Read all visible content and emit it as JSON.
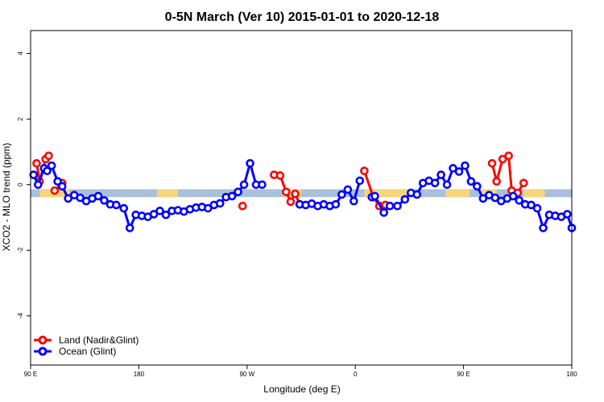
{
  "chart_data": {
    "type": "line",
    "title": "0-5N March (Ver 10)   2015-01-01 to 2020-12-18",
    "xlabel": "Longitude (deg E)",
    "ylabel": "XCO2 - MLO trend (ppm)",
    "xlim": [
      90,
      450
    ],
    "ylim": [
      -5.5,
      4.7
    ],
    "x_ticks": [
      {
        "value": 90,
        "label": "90 E"
      },
      {
        "value": 162,
        "label": "180"
      },
      {
        "value": 234,
        "label": "90 W"
      },
      {
        "value": 306,
        "label": "0"
      },
      {
        "value": 378,
        "label": "90 E"
      },
      {
        "value": 450,
        "label": "180"
      }
    ],
    "y_ticks": [
      {
        "value": 4,
        "label": "4"
      },
      {
        "value": 2,
        "label": "2"
      },
      {
        "value": 0,
        "label": "0"
      },
      {
        "value": -2,
        "label": "-2"
      },
      {
        "value": -4,
        "label": "-4"
      }
    ],
    "band": {
      "y_low": -0.38,
      "y_high": -0.14,
      "color": "#a9bfdb",
      "land_color": "#f6d67c"
    },
    "land_segments": [
      [
        96,
        116
      ],
      [
        174,
        188
      ],
      [
        258,
        270
      ],
      [
        312,
        344
      ],
      [
        366,
        382
      ],
      [
        389,
        400
      ],
      [
        418,
        432
      ]
    ],
    "legend": {
      "position": "bottom-left"
    },
    "series": [
      {
        "name": "Land (Nadir&Glint)",
        "color": "#ff0000",
        "segments": [
          {
            "x": [
              94,
              96,
              100,
              102
            ],
            "y": [
              0.65,
              0.1,
              0.78,
              0.88
            ]
          },
          {
            "x": [
              106,
              111
            ],
            "y": [
              -0.18,
              0.05
            ]
          },
          {
            "x": [
              231
            ],
            "y": [
              -0.65
            ]
          },
          {
            "x": [
              252,
              256,
              260,
              263,
              266,
              269
            ],
            "y": [
              0.3,
              0.28,
              -0.22,
              -0.52,
              -0.28,
              -0.6
            ]
          },
          {
            "x": [
              312,
              318,
              322
            ],
            "y": [
              0.42,
              -0.38,
              -0.65
            ]
          },
          {
            "x": [
              326
            ],
            "y": [
              -0.62
            ]
          },
          {
            "x": [
              397,
              400,
              404,
              408,
              410,
              414,
              418
            ],
            "y": [
              0.65,
              0.1,
              0.78,
              0.88,
              -0.18,
              -0.25,
              0.05
            ]
          }
        ]
      },
      {
        "name": "Ocean (Glint)",
        "color": "#0000ff",
        "segments": [
          {
            "x": [
              92,
              95,
              99,
              101,
              104,
              108,
              111,
              115,
              119,
              123,
              127,
              131,
              135,
              139,
              143,
              147,
              152,
              156,
              160,
              164,
              168,
              172,
              176,
              180,
              184,
              188,
              192,
              196,
              200,
              204,
              208,
              212,
              216,
              220,
              224,
              228,
              232,
              236,
              240,
              244
            ],
            "y": [
              0.3,
              0.0,
              0.5,
              0.42,
              0.58,
              0.1,
              -0.05,
              -0.42,
              -0.32,
              -0.4,
              -0.5,
              -0.42,
              -0.35,
              -0.48,
              -0.6,
              -0.62,
              -0.72,
              -1.32,
              -0.92,
              -0.95,
              -0.98,
              -0.9,
              -0.8,
              -0.92,
              -0.8,
              -0.78,
              -0.82,
              -0.75,
              -0.7,
              -0.68,
              -0.72,
              -0.62,
              -0.57,
              -0.38,
              -0.35,
              -0.22,
              0.0,
              0.65,
              0.0,
              0.0
            ]
          },
          {
            "x": [
              269,
              273,
              277,
              281,
              285,
              289,
              293,
              297,
              301,
              305,
              309
            ],
            "y": [
              -0.6,
              -0.62,
              -0.58,
              -0.65,
              -0.6,
              -0.65,
              -0.6,
              -0.3,
              -0.15,
              -0.5,
              0.12
            ]
          },
          {
            "x": [
              317,
              319,
              325,
              329,
              334,
              339,
              343,
              347,
              351,
              355,
              359,
              363,
              367,
              371,
              375,
              379,
              383,
              387,
              391,
              395,
              399,
              403,
              407,
              411,
              415,
              419,
              423,
              427,
              431,
              435,
              439,
              443,
              447,
              450
            ],
            "y": [
              -0.38,
              -0.35,
              -0.85,
              -0.65,
              -0.65,
              -0.45,
              -0.25,
              -0.3,
              0.05,
              0.12,
              0.05,
              0.3,
              0.0,
              0.5,
              0.4,
              0.58,
              0.1,
              -0.05,
              -0.42,
              -0.32,
              -0.4,
              -0.5,
              -0.42,
              -0.35,
              -0.48,
              -0.6,
              -0.62,
              -0.72,
              -1.32,
              -0.92,
              -0.95,
              -0.98,
              -0.9,
              -1.32
            ]
          }
        ]
      }
    ]
  }
}
